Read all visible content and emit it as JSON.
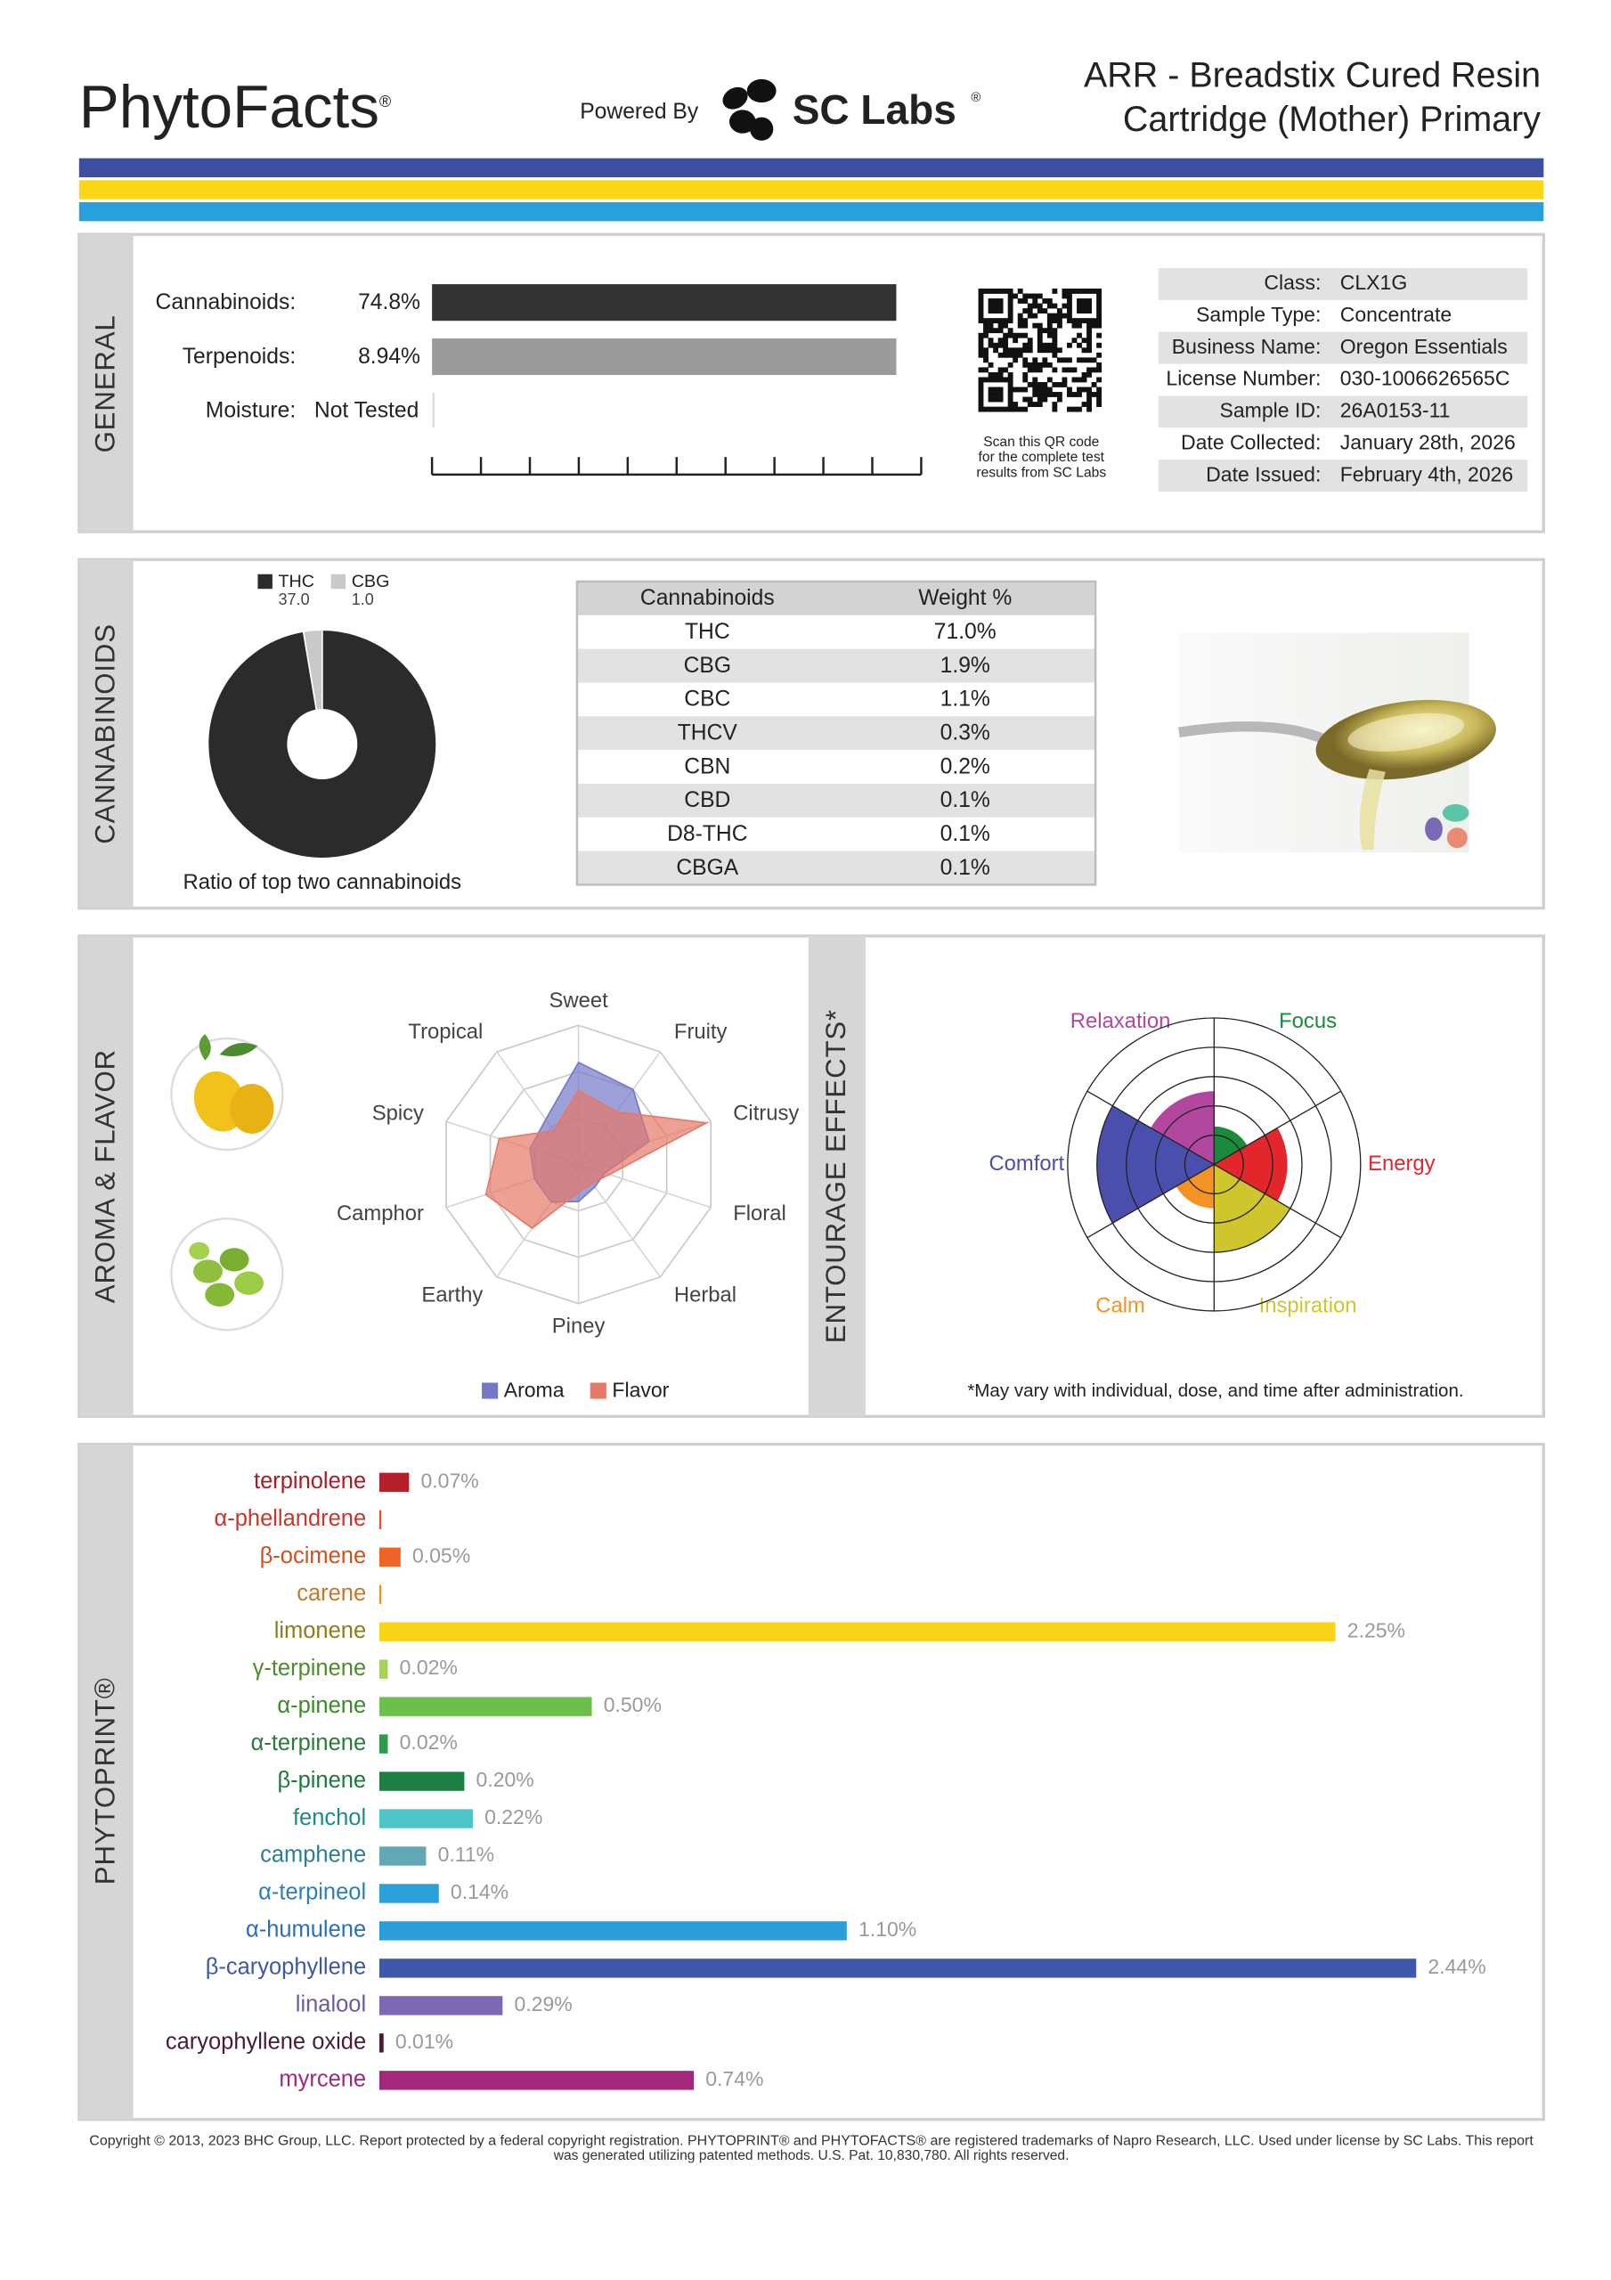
{
  "header": {
    "brand": "PhytoFacts",
    "brand_mark": "®",
    "powered": "Powered By",
    "lab": "SC Labs",
    "lab_mark": "®",
    "title_lines": [
      "ARR - Breadstix Cured Resin",
      "Cartridge (Mother) Primary"
    ]
  },
  "general": {
    "section": "GENERAL",
    "metrics": [
      {
        "label": "Cannabinoids:",
        "value": "74.8%"
      },
      {
        "label": "Terpenoids:",
        "value": "8.94%"
      },
      {
        "label": "Moisture:",
        "value": "Not Tested"
      }
    ],
    "qr_note": [
      "Scan this QR code",
      "for the complete test",
      "results from SC Labs"
    ],
    "info": [
      [
        "Class:",
        "CLX1G"
      ],
      [
        "Sample Type:",
        "Concentrate"
      ],
      [
        "Business Name:",
        "Oregon Essentials"
      ],
      [
        "License Number:",
        "030-1006626565C"
      ],
      [
        "Sample ID:",
        "26A0153-11"
      ],
      [
        "Date Collected:",
        "January 28th, 2026"
      ],
      [
        "Date Issued:",
        "February 4th, 2026"
      ]
    ]
  },
  "cannabinoids": {
    "section": "CANNABINOIDS",
    "chart_data": {
      "type": "pie",
      "categories": [
        "THC",
        "CBG"
      ],
      "values": [
        37.0,
        1.0
      ],
      "value_labels": [
        "37.0",
        "1.0"
      ],
      "colors": [
        "#2b2b2b",
        "#c9c9c9"
      ],
      "caption": "Ratio of top two cannabinoids"
    },
    "table": {
      "header": [
        "Cannabinoids",
        "Weight %"
      ],
      "rows": [
        [
          "THC",
          "71.0%"
        ],
        [
          "CBG",
          "1.9%"
        ],
        [
          "CBC",
          "1.1%"
        ],
        [
          "THCV",
          "0.3%"
        ],
        [
          "CBN",
          "0.2%"
        ],
        [
          "CBD",
          "0.1%"
        ],
        [
          "D8-THC",
          "0.1%"
        ],
        [
          "CBGA",
          "0.1%"
        ]
      ]
    }
  },
  "aroma": {
    "section": "AROMA & FLAVOR",
    "chart_data": {
      "type": "radar",
      "categories": [
        "Sweet",
        "Fruity",
        "Citrusy",
        "Floral",
        "Herbal",
        "Piney",
        "Earthy",
        "Camphor",
        "Spicy",
        "Tropical"
      ],
      "rlim": [
        0,
        3
      ],
      "rticks": [
        1,
        2,
        3
      ],
      "series": [
        {
          "name": "Aroma",
          "color": "#7378c9",
          "values": [
            2.2,
            2.0,
            1.6,
            0.6,
            0.6,
            0.8,
            1.0,
            1.0,
            1.1,
            1.2
          ]
        },
        {
          "name": "Flavor",
          "color": "#e57866",
          "values": [
            1.6,
            1.4,
            2.9,
            0.7,
            0.5,
            0.6,
            1.7,
            2.1,
            1.8,
            0.9
          ]
        }
      ]
    }
  },
  "entourage": {
    "section": "ENTOURAGE EFFECTS*",
    "chart_data": {
      "type": "polar",
      "categories": [
        "Focus",
        "Energy",
        "Inspiration",
        "Calm",
        "Comfort",
        "Relaxation"
      ],
      "colors": [
        "#1b8a3c",
        "#e2262b",
        "#cfc62d",
        "#f39323",
        "#4a4fae",
        "#b2479f"
      ],
      "values": [
        1.3,
        2.5,
        3.0,
        1.5,
        4.0,
        2.5
      ],
      "rlim": [
        0,
        5
      ],
      "rticks": [
        1,
        2,
        3,
        4,
        5
      ]
    },
    "note": "*May vary with individual, dose, and time after administration."
  },
  "phytoprint": {
    "section": "PHYTOPRINT®",
    "chart_data": {
      "type": "hbar",
      "categories": [
        "terpinolene",
        "α-phellandrene",
        "β-ocimene",
        "carene",
        "limonene",
        "γ-terpinene",
        "α-pinene",
        "α-terpinene",
        "β-pinene",
        "fenchol",
        "camphene",
        "α-terpineol",
        "α-humulene",
        "β-caryophyllene",
        "linalool",
        "caryophyllene oxide",
        "myrcene"
      ],
      "values": [
        0.07,
        0,
        0.05,
        0,
        2.25,
        0.02,
        0.5,
        0.02,
        0.2,
        0.22,
        0.11,
        0.14,
        1.1,
        2.44,
        0.29,
        0.01,
        0.74
      ],
      "value_labels": [
        "0.07%",
        null,
        "0.05%",
        null,
        "2.25%",
        "0.02%",
        "0.50%",
        "0.02%",
        "0.20%",
        "0.22%",
        "0.11%",
        "0.14%",
        "1.10%",
        "2.44%",
        "0.29%",
        "0.01%",
        "0.74%"
      ],
      "colors": [
        "#b3202a",
        "#e4532f",
        "#ef6424",
        "#e8902c",
        "#f8d31a",
        "#a8d15c",
        "#6dbf4c",
        "#2f9a4b",
        "#1a7f40",
        "#4ec4c9",
        "#62a7b6",
        "#2a9fd8",
        "#2b9ed9",
        "#3d58a8",
        "#7d68b6",
        "#4b1a3b",
        "#a2287c"
      ],
      "label_colors": [
        "#a81c24",
        "#c7362a",
        "#d3501e",
        "#c07a2a",
        "#8c7d1a",
        "#4f8b2b",
        "#3b8a2a",
        "#2a7a3a",
        "#1a7a3a",
        "#1b8a8c",
        "#2a7f95",
        "#2a7fbf",
        "#2a6fbf",
        "#3d58a8",
        "#6a5aa8",
        "#4b1a3b",
        "#a2287c"
      ]
    }
  },
  "footer": [
    "Copyright © 2013, 2023 BHC Group, LLC. Report protected by a federal copyright registration. PHYTOPRINT® and PHYTOFACTS® are registered trademarks of Napro Research, LLC. Used under license by SC Labs. This report",
    "was generated utilizing patented methods. U.S. Pat. 10,830,780. All rights reserved."
  ]
}
